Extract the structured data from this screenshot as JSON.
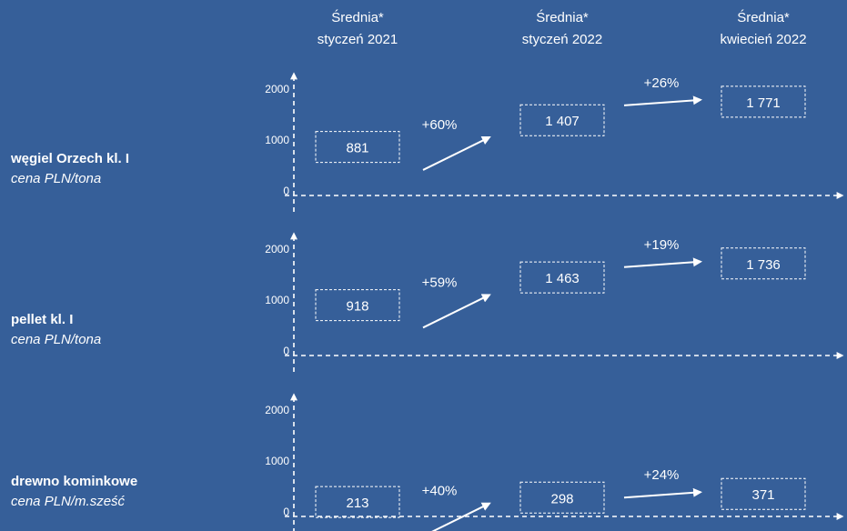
{
  "chart_data": {
    "type": "bar",
    "periods": [
      {
        "line1": "Średnia*",
        "line2": "styczeń 2021"
      },
      {
        "line1": "Średnia*",
        "line2": "styczeń 2022"
      },
      {
        "line1": "Średnia*",
        "line2": "kwiecień 2022"
      }
    ],
    "y_ticks": [
      "0",
      "1000",
      "2000"
    ],
    "ylim": [
      0,
      2000
    ],
    "rows": [
      {
        "name": "węgiel Orzech kl. I",
        "unit": "cena PLN/tona",
        "values": [
          881,
          1407,
          1771
        ],
        "value_labels": [
          "881",
          "1 407",
          "1 771"
        ],
        "changes": [
          "+60%",
          "+26%"
        ]
      },
      {
        "name": "pellet kl. I",
        "unit": "cena PLN/tona",
        "values": [
          918,
          1463,
          1736
        ],
        "value_labels": [
          "918",
          "1 463",
          "1 736"
        ],
        "changes": [
          "+59%",
          "+19%"
        ]
      },
      {
        "name": "drewno kominkowe",
        "unit": "cena PLN/m.sześć",
        "values": [
          213,
          298,
          371
        ],
        "value_labels": [
          "213",
          "298",
          "371"
        ],
        "changes": [
          "+40%",
          "+24%"
        ]
      }
    ]
  }
}
